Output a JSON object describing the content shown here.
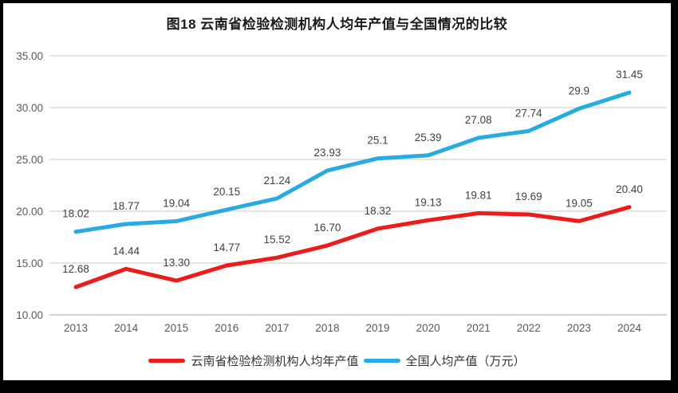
{
  "title": "图18  云南省检验检测机构人均年产值与全国情况的比较",
  "frame_color": "#000000",
  "chart_background": "#ffffff",
  "chart_data": {
    "type": "line",
    "categories": [
      "2013",
      "2014",
      "2015",
      "2016",
      "2017",
      "2018",
      "2019",
      "2020",
      "2021",
      "2022",
      "2023",
      "2024"
    ],
    "series": [
      {
        "name": "云南省检验检测机构人均年产值",
        "color": "#ED1C1C",
        "values": [
          12.68,
          14.44,
          13.3,
          14.77,
          15.52,
          16.7,
          18.32,
          19.13,
          19.81,
          19.69,
          19.05,
          20.4
        ],
        "labels": [
          "12.68",
          "14.44",
          "13.30",
          "14.77",
          "15.52",
          "16.70",
          "18.32",
          "19.13",
          "19.81",
          "19.69",
          "19.05",
          "20.40"
        ]
      },
      {
        "name": "全国人均产值（万元）",
        "color": "#29ABE2",
        "values": [
          18.02,
          18.77,
          19.04,
          20.15,
          21.24,
          23.93,
          25.1,
          25.39,
          27.08,
          27.74,
          29.9,
          31.45
        ],
        "labels": [
          "18.02",
          "18.77",
          "19.04",
          "20.15",
          "21.24",
          "23.93",
          "25.1",
          "25.39",
          "27.08",
          "27.74",
          "29.9",
          "31.45"
        ]
      }
    ],
    "title": "图18  云南省检验检测机构人均年产值与全国情况的比较",
    "xlabel": "",
    "ylabel": "",
    "ylim": [
      10,
      35
    ],
    "ytick_step": 5,
    "ytick_labels": [
      "10.00",
      "15.00",
      "20.00",
      "25.00",
      "30.00",
      "35.00"
    ],
    "grid": true,
    "gridline_color": "#DCDCDC",
    "axisline_color": "#C8C8C8",
    "legend_position": "bottom",
    "line_width": 5
  }
}
